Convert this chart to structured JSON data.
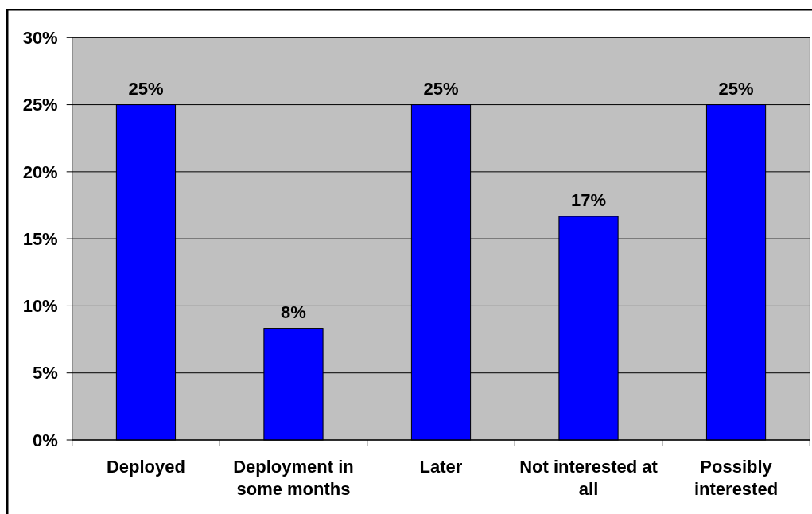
{
  "chart_data": {
    "type": "bar",
    "categories": [
      "Deployed",
      "Deployment in some months",
      "Later",
      "Not interested at all",
      "Possibly interested"
    ],
    "values": [
      25,
      8.33,
      25,
      16.67,
      25
    ],
    "color": "#0000ff",
    "value_labels": [
      "25%",
      "8%",
      "25%",
      "17%",
      "25%"
    ],
    "ylim": [
      0,
      30
    ],
    "yticks": [
      {
        "value": 0,
        "label": "0%"
      },
      {
        "value": 5,
        "label": "5%"
      },
      {
        "value": 10,
        "label": "10%"
      },
      {
        "value": 15,
        "label": "15%"
      },
      {
        "value": 20,
        "label": "20%"
      },
      {
        "value": 25,
        "label": "25%"
      },
      {
        "value": 30,
        "label": "30%"
      }
    ],
    "grid": "y"
  }
}
